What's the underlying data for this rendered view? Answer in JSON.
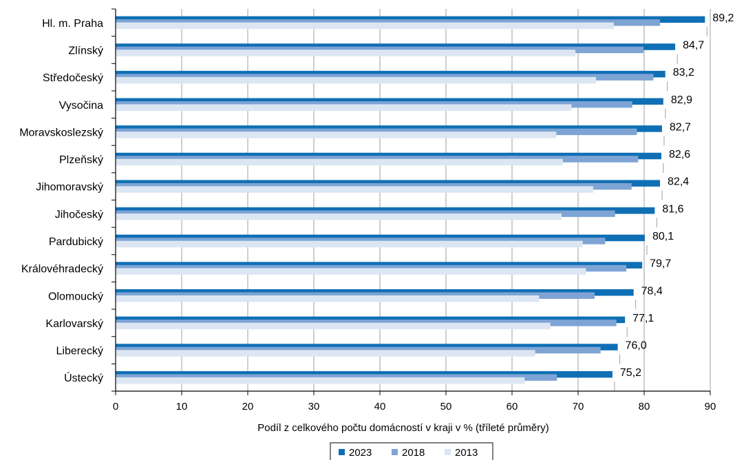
{
  "chart_data": {
    "type": "bar",
    "orientation": "horizontal",
    "categories": [
      "Hl. m. Praha",
      "Zlínský",
      "Středočeský",
      "Vysočina",
      "Moravskoslezský",
      "Plzeňský",
      "Jihomoravský",
      "Jihočeský",
      "Pardubický",
      "Královéhradecký",
      "Olomoucký",
      "Karlovarský",
      "Liberecký",
      "Ústecký"
    ],
    "series": [
      {
        "name": "2023",
        "color": "#0f6fb5",
        "values": [
          89.2,
          84.7,
          83.2,
          82.9,
          82.7,
          82.6,
          82.4,
          81.6,
          80.1,
          79.7,
          78.4,
          77.1,
          76.0,
          75.2
        ]
      },
      {
        "name": "2018",
        "color": "#7da4d4",
        "values": [
          82.4,
          79.9,
          81.4,
          78.2,
          78.9,
          79.1,
          78.1,
          75.6,
          74.1,
          77.3,
          72.5,
          75.8,
          73.4,
          66.8
        ]
      },
      {
        "name": "2013",
        "color": "#dce6f3",
        "values": [
          75.4,
          69.6,
          72.7,
          69.0,
          66.7,
          67.7,
          72.3,
          67.5,
          70.7,
          71.2,
          64.1,
          65.8,
          63.5,
          61.9
        ]
      }
    ],
    "data_labels": [
      "89,2",
      "84,7",
      "83,2",
      "82,9",
      "82,7",
      "82,6",
      "82,4",
      "81,6",
      "80,1",
      "79,7",
      "78,4",
      "77,1",
      "76,0",
      "75,2"
    ],
    "xticks": [
      "0",
      "10",
      "20",
      "30",
      "40",
      "50",
      "60",
      "70",
      "80",
      "90"
    ],
    "xlim": [
      0,
      90
    ],
    "xlabel": "Podíl  z celkového počtu domácností v kraji v % (tříleté průměry)",
    "grid": true,
    "legend_position": "bottom-center"
  }
}
